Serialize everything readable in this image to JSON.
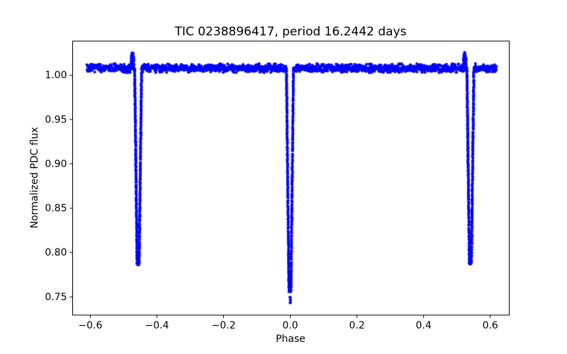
{
  "chart_data": {
    "type": "scatter",
    "title": "TIC 0238896417, period 16.2442 days",
    "xlabel": "Phase",
    "ylabel": "Normalized PDC flux",
    "marker_color": "#0000ff",
    "axis_color": "#000000",
    "background_color": "#ffffff",
    "legend": "none",
    "grid": false,
    "xlim": [
      -0.653,
      0.657
    ],
    "ylim": [
      0.7295,
      1.0385
    ],
    "xticks": {
      "values": [
        -0.6,
        -0.4,
        -0.2,
        0.0,
        0.2,
        0.4,
        0.6
      ],
      "labels": [
        "−0.6",
        "−0.4",
        "−0.2",
        "0.0",
        "0.2",
        "0.4",
        "0.6"
      ]
    },
    "yticks": {
      "values": [
        0.75,
        0.8,
        0.85,
        0.9,
        0.95,
        1.0
      ],
      "labels": [
        "0.75",
        "0.80",
        "0.85",
        "0.90",
        "0.95",
        "1.00"
      ]
    },
    "light_curve": {
      "phase_range": [
        -0.61,
        0.619
      ],
      "baseline_flux": 1.008,
      "baseline_scatter": 0.0055,
      "eclipses": [
        {
          "name": "secondary-eclipse-left",
          "center_phase": -0.4565,
          "min_flux": 0.786,
          "top_half_width": 0.0105,
          "bottom_half_width": 0.003,
          "pre_eclipse_bump": {
            "offset": -0.017,
            "peak_flux": 1.026,
            "width": 0.01
          }
        },
        {
          "name": "primary-eclipse",
          "center_phase": -0.001,
          "min_flux": 0.756,
          "top_half_width": 0.0105,
          "bottom_half_width": 0.003,
          "outlier_points": [
            [
              -0.0005,
              0.7495
            ],
            [
              0.0005,
              0.7465
            ],
            [
              0.0,
              0.7435
            ]
          ]
        },
        {
          "name": "secondary-eclipse-right",
          "center_phase": 0.5405,
          "min_flux": 0.787,
          "top_half_width": 0.0105,
          "bottom_half_width": 0.003,
          "pre_eclipse_bump": {
            "offset": -0.017,
            "peak_flux": 1.026,
            "width": 0.01
          }
        }
      ]
    }
  }
}
